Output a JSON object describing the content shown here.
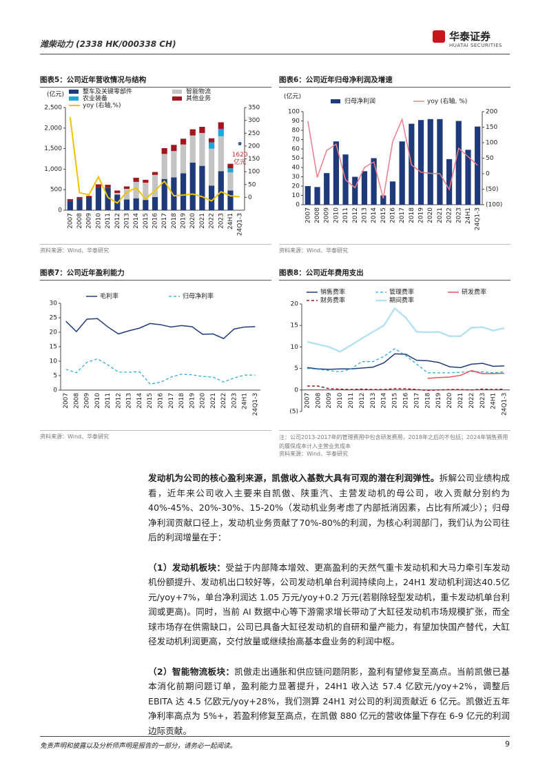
{
  "header": {
    "title": "潍柴动力 (2338 HK/000338 CH)",
    "logo": "华泰证券",
    "logo_sub": "HUATAI SECURITIES"
  },
  "chart_data": [
    {
      "type": "bar",
      "title": "图表5：公司近年营收情况与结构",
      "y_label": "(亿元)",
      "stacked": true,
      "categories": [
        "2007",
        "2008",
        "2009",
        "2010",
        "2011",
        "2012",
        "2013",
        "2014",
        "2015",
        "2016",
        "2017",
        "2018",
        "2019",
        "2020",
        "2021",
        "2022",
        "2023",
        "24H1",
        "24Q1-3"
      ],
      "series": [
        {
          "name": "整车及关键零部件",
          "color": "#1f3a7a",
          "values": [
            230,
            280,
            310,
            560,
            540,
            380,
            260,
            290,
            250,
            320,
            760,
            800,
            900,
            1160,
            1080,
            600,
            950,
            480,
            null
          ]
        },
        {
          "name": "智能物流",
          "color": "#c4c4c4",
          "values": [
            null,
            null,
            null,
            null,
            null,
            40,
            260,
            400,
            420,
            540,
            610,
            640,
            700,
            660,
            800,
            900,
            850,
            440,
            null
          ]
        },
        {
          "name": "农业装备",
          "color": "#1ea7dc",
          "values": [
            null,
            null,
            null,
            null,
            null,
            null,
            null,
            null,
            null,
            null,
            null,
            null,
            null,
            null,
            null,
            150,
            180,
            100,
            null
          ]
        },
        {
          "name": "其他业务",
          "color": "#a3171c",
          "values": [
            40,
            40,
            40,
            70,
            80,
            60,
            60,
            100,
            70,
            70,
            140,
            150,
            140,
            150,
            150,
            100,
            160,
            110,
            null
          ]
        },
        {
          "name": "yoy (右轴,%)",
          "type": "line",
          "axis": "y2",
          "color": "#f2c200",
          "line_width": 2,
          "values": [
            312,
            18,
            10,
            80,
            0,
            -22,
            20,
            37,
            -6,
            26,
            63,
            6,
            9,
            13,
            3,
            -14,
            22,
            6,
            2
          ]
        }
      ],
      "ylim": [
        0,
        2500
      ],
      "yticks": [
        0,
        500,
        {
          "value": 1000,
          "label": "1,000"
        },
        {
          "value": 1500,
          "label": "1,500"
        },
        {
          "value": 2000,
          "label": "2,000"
        },
        {
          "value": 2500,
          "label": "2,500"
        }
      ],
      "y2lim": [
        -50,
        350
      ],
      "y2ticks": [
        0,
        50,
        100,
        150,
        200,
        250,
        300,
        350
      ],
      "annotation": {
        "lines": [
          "1620",
          "亿元"
        ],
        "value": 1620,
        "color": "#c0282d",
        "marker_color": "#3b5b9c"
      },
      "source": "资料来源：Wind、华泰研究"
    },
    {
      "type": "bar",
      "title": "图表6：公司近年归母净利润及增速",
      "y_label": "(亿元)",
      "categories": [
        "2007",
        "2008",
        "2009",
        "2010",
        "2011",
        "2012",
        "2013",
        "2014",
        "2015",
        "2016",
        "2017",
        "2018",
        "2019",
        "2020",
        "2021",
        "2022",
        "2023",
        "24H1",
        "24Q1-3"
      ],
      "series": [
        {
          "name": "归母净利润",
          "color": "#1f3a7a",
          "values": [
            20,
            19,
            34,
            68,
            54,
            30,
            36,
            50,
            10,
            25,
            68,
            87,
            91,
            92,
            92,
            49,
            90,
            59,
            84
          ]
        },
        {
          "name": "yoy (右轴, %)",
          "type": "line",
          "axis": "y2",
          "color": "#f07a86",
          "line_width": 1.5,
          "values": [
            170,
            -12,
            75,
            95,
            -20,
            -45,
            20,
            38,
            -80,
            104,
            175,
            28,
            5,
            1,
            0,
            -51,
            82,
            55,
            27
          ]
        }
      ],
      "ylim": [
        0,
        100
      ],
      "yticks": [
        0,
        10,
        20,
        30,
        40,
        50,
        60,
        70,
        80,
        90,
        100
      ],
      "y2lim": [
        -100,
        200
      ],
      "y2ticks": [
        {
          "value": -100,
          "label": "(100)"
        },
        {
          "value": -50,
          "label": "(50)"
        },
        0,
        50,
        100,
        150,
        200
      ],
      "source": "资料来源：Wind、华泰研究"
    },
    {
      "type": "line",
      "title": "图表7：公司近年盈利能力",
      "categories": [
        "2007",
        "2008",
        "2009",
        "2010",
        "2011",
        "2012",
        "2013",
        "2014",
        "2015",
        "2016",
        "2017",
        "2018",
        "2019",
        "2020",
        "2021",
        "2022",
        "2023",
        "24H1",
        "24Q1-3"
      ],
      "series": [
        {
          "name": "毛利率",
          "color": "#1f3a7a",
          "line_width": 1.5,
          "values": [
            23.8,
            20.2,
            24.5,
            24.7,
            21.8,
            19.4,
            20.5,
            21.4,
            23,
            22.6,
            21.8,
            22.3,
            21.9,
            19.3,
            19.4,
            17.8,
            21.1,
            21.8,
            21.9
          ]
        },
        {
          "name": "归母净利率",
          "color": "#1ea7dc",
          "dash": true,
          "line_width": 1.2,
          "values": [
            7.2,
            6,
            9.6,
            10.8,
            8.7,
            6.2,
            6.2,
            6.3,
            2.1,
            2.7,
            4.5,
            5.5,
            5.3,
            4.7,
            4.5,
            2.8,
            4.2,
            5.2,
            5.2
          ]
        }
      ],
      "ylim": [
        0,
        30
      ],
      "yticks": [
        0,
        5,
        10,
        15,
        20,
        25,
        30
      ],
      "source": "资料来源：Wind、华泰研究"
    },
    {
      "type": "line",
      "title": "图表8：公司近年费用支出",
      "categories": [
        "2007",
        "2008",
        "2009",
        "2010",
        "2011",
        "2012",
        "2013",
        "2014",
        "2015",
        "2016",
        "2017",
        "2018",
        "2019",
        "2020",
        "2021",
        "2022",
        "2023",
        "24H1",
        "24Q1-3"
      ],
      "series": [
        {
          "name": "销售费率",
          "color": "#1f3a7a",
          "line_width": 1.5,
          "values": [
            5.2,
            4.9,
            4.8,
            4.9,
            4.9,
            5.1,
            5.3,
            6.3,
            8.4,
            8.3,
            6.9,
            6.8,
            6.4,
            5.4,
            5.2,
            6.0,
            6.2,
            5.5,
            5.6
          ]
        },
        {
          "name": "管理费率",
          "color": "#1ea7dc",
          "dash": true,
          "line_width": 1.2,
          "values": [
            5.0,
            4.8,
            4.5,
            4.2,
            4.9,
            6.6,
            6.6,
            7.8,
            9.6,
            8.0,
            6.0,
            4.0,
            4.0,
            4.0,
            4.1,
            4.3,
            4.2,
            4.0,
            4.2
          ]
        },
        {
          "name": "研发费率",
          "color": "#e8505b",
          "line_width": 1.5,
          "values": [
            null,
            null,
            null,
            null,
            null,
            null,
            null,
            null,
            null,
            null,
            null,
            2.7,
            2.9,
            3.0,
            3.4,
            4.5,
            3.8,
            3.8,
            3.9
          ]
        },
        {
          "name": "财务费率",
          "color": "#a3171c",
          "dash": true,
          "line_width": 1.5,
          "values": [
            0.9,
            0.9,
            0.3,
            0.2,
            0.1,
            0.2,
            0.1,
            0.1,
            0.3,
            0.3,
            0.1,
            -0.1,
            0.0,
            0.1,
            0.1,
            0.0,
            0.2,
            0.1,
            0.2
          ]
        },
        {
          "name": "期间费率",
          "color": "#b5e2f3",
          "line_width": 2.5,
          "values": [
            11.2,
            10.6,
            10.0,
            8.9,
            10.4,
            12.0,
            13.5,
            15.0,
            19.0,
            16.8,
            13.5,
            13.4,
            13.5,
            12.5,
            12.5,
            14.5,
            14.6,
            13.8,
            14.4
          ]
        }
      ],
      "ylim": [
        -5,
        20
      ],
      "yticks": [
        {
          "value": -5,
          "label": "(5)"
        },
        0,
        5,
        10,
        15,
        20
      ],
      "note": "注：公司2013-2017年的管理费用中包含研发费用，2018年之后的不包括；2024年销售费用的履保成本计入主营业务成本",
      "source": "资料来源：Wind、华泰研究"
    }
  ],
  "body": {
    "paragraphs": [
      {
        "lead": "发动机为公司的核心盈利来源，凯傲收入基数大具有可观的潜在利润弹性。",
        "text": "拆解公司业绩构成看，近年来公司收入主要来自凯傲、陕重汽、主营发动机的母公司，收入贡献分别约为40%-45%、20%-30%、15-20%（发动机业务考虑了内部抵消因素，占比有所减少）；归母净利润贡献口径上，发动机业务贡献了70%-80%的利润，为核心利润部门，我们认为公司往后的利润增量在于："
      },
      {
        "lead": "（1）发动机板块：",
        "text": "受益于内部降本增效、更高盈利的天然气重卡发动机和大马力牵引车发动机份额提升、发动机出口较好等，公司发动机单台利润持续向上，24H1 发动机利润达40.5亿元/yoy+7%，单台净利润达 1.05 万元/yoy+0.2 万元(若剔除轻型发动机，重卡发动机单台利润或更高)。同时，当前 AI 数据中心等下游需求增长带动了大缸径发动机市场规模扩张，而全球市场存在供需缺口，公司已具备大缸径发动机的自研和量产能力，有望加快国产替代，大缸径发动机利润更高，交付放量或继续抬高基本盘业务的利润中枢。"
      },
      {
        "lead": "（2）智能物流板块：",
        "text": "凯傲走出通胀和供应链问题阴影，盈利有望修复至高点。当前凯傲已基本消化前期问题订单，盈利能力显著提升，24H1 收入达 57.4 亿欧元/yoy+2%，调整后EBITA 达 4.5 亿欧元/yoy+28%，我们测算 24H1 对公司的利润贡献近 6 亿元。凯傲近五年净利率高点为 5%+，若盈利修复至高点，在凯傲 880 亿元的营收体量下存在 6-9 亿元的利润边际贡献。"
      }
    ]
  },
  "footer": {
    "disclaimer": "免责声明和披露以及分析师声明是报告的一部分，请务必一起阅读。",
    "page": "9"
  }
}
